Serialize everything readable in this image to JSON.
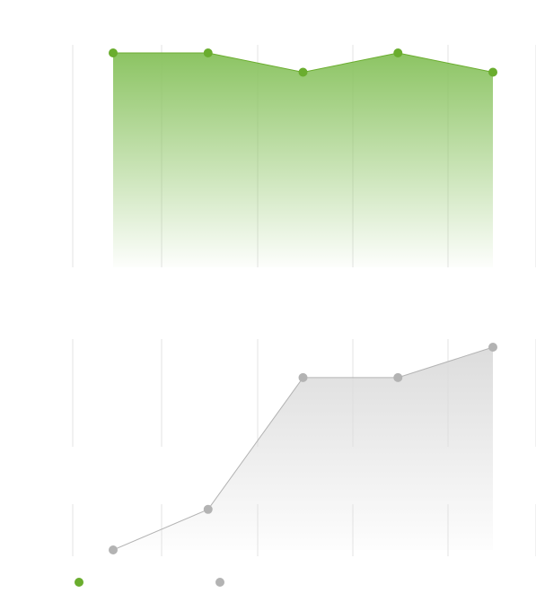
{
  "chart_data": [
    {
      "type": "area",
      "x": [
        1,
        2,
        3,
        4,
        5
      ],
      "series": [
        {
          "values": [
            100,
            100,
            91,
            100,
            91
          ],
          "color": "#6aad2e",
          "fill": "#8cc463"
        }
      ],
      "ylim": [
        0,
        100
      ],
      "grid": "vertical",
      "title": "",
      "xlabel": "",
      "ylabel": ""
    },
    {
      "type": "line",
      "x": [
        1,
        2,
        3,
        4,
        5
      ],
      "series": [
        {
          "values": [
            0,
            20,
            85,
            85,
            100
          ],
          "color": "#b3b3b3",
          "fill": "#e6e6e6"
        }
      ],
      "ylim": [
        0,
        100
      ],
      "grid": "vertical",
      "title": "",
      "xlabel": "",
      "ylabel": ""
    }
  ],
  "legend": {
    "items": [
      {
        "label": "",
        "color": "#6aad2e"
      },
      {
        "label": "",
        "color": "#b3b3b3"
      }
    ]
  }
}
